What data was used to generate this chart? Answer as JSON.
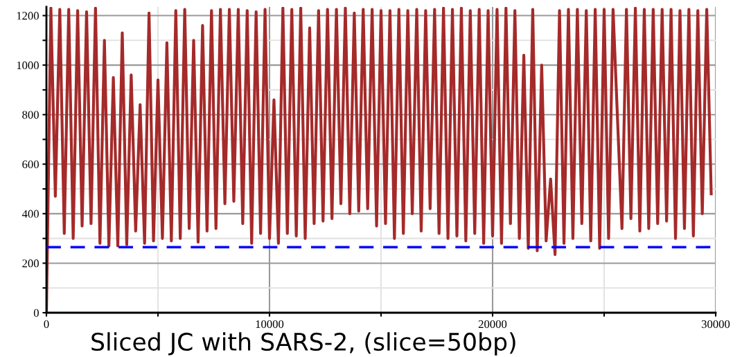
{
  "chart_data": {
    "type": "line",
    "title": "Sliced JC with SARS-2, (slice=50bp)",
    "x": [
      0,
      200,
      400,
      600,
      800,
      1000,
      1200,
      1400,
      1600,
      1800,
      2000,
      2200,
      2400,
      2600,
      2800,
      3000,
      3200,
      3400,
      3600,
      3800,
      4000,
      4200,
      4400,
      4600,
      4800,
      5000,
      5200,
      5400,
      5600,
      5800,
      6000,
      6200,
      6400,
      6600,
      6800,
      7000,
      7200,
      7400,
      7600,
      7800,
      8000,
      8200,
      8400,
      8600,
      8800,
      9000,
      9200,
      9400,
      9600,
      9800,
      10000,
      10200,
      10400,
      10600,
      10800,
      11000,
      11200,
      11400,
      11600,
      11800,
      12000,
      12200,
      12400,
      12600,
      12800,
      13000,
      13200,
      13400,
      13600,
      13800,
      14000,
      14200,
      14400,
      14600,
      14800,
      15000,
      15200,
      15400,
      15600,
      15800,
      16000,
      16200,
      16400,
      16600,
      16800,
      17000,
      17200,
      17400,
      17600,
      17800,
      18000,
      18200,
      18400,
      18600,
      18800,
      19000,
      19200,
      19400,
      19600,
      19800,
      20000,
      20200,
      20400,
      20600,
      20800,
      21000,
      21200,
      21400,
      21600,
      21800,
      22000,
      22200,
      22400,
      22600,
      22800,
      23000,
      23200,
      23400,
      23600,
      23800,
      24000,
      24200,
      24400,
      24600,
      24800,
      25000,
      25200,
      25400,
      25800,
      26000,
      26200,
      26400,
      26600,
      26800,
      27000,
      27200,
      27400,
      27600,
      27800,
      28000,
      28200,
      28400,
      28600,
      28800,
      29000,
      29200,
      29400,
      29600,
      29800
    ],
    "series": [
      {
        "color": "#a52a2a",
        "values": [
          0,
          1230,
          470,
          1225,
          320,
          1225,
          300,
          1220,
          350,
          1215,
          360,
          1230,
          280,
          1100,
          270,
          950,
          270,
          1130,
          275,
          960,
          330,
          840,
          280,
          1210,
          290,
          940,
          300,
          1090,
          290,
          1220,
          300,
          1225,
          340,
          1100,
          285,
          1160,
          330,
          1220,
          340,
          1225,
          440,
          1225,
          450,
          1225,
          360,
          1220,
          280,
          1215,
          320,
          1225,
          300,
          860,
          280,
          1230,
          320,
          1225,
          310,
          1230,
          300,
          1150,
          360,
          1220,
          370,
          1225,
          380,
          1225,
          440,
          1230,
          400,
          1210,
          410,
          1225,
          420,
          1225,
          350,
          1220,
          360,
          1220,
          300,
          1225,
          320,
          1220,
          400,
          1225,
          330,
          1220,
          420,
          1225,
          320,
          1230,
          300,
          1225,
          310,
          1230,
          290,
          1220,
          320,
          1225,
          280,
          1220,
          310,
          1225,
          280,
          1230,
          360,
          1220,
          300,
          1040,
          260,
          1225,
          250,
          1000,
          290,
          540,
          235,
          1220,
          280,
          1225,
          300,
          1225,
          360,
          1220,
          290,
          1225,
          260,
          1225,
          300,
          1225,
          340,
          1225,
          380,
          1230,
          330,
          1225,
          340,
          1225,
          360,
          1225,
          370,
          1225,
          300,
          1220,
          340,
          1225,
          310,
          1220,
          400,
          1225,
          480
        ]
      }
    ],
    "xlim": [
      0,
      30000
    ],
    "ylim": [
      0,
      1235
    ],
    "xticks": [
      0,
      {
        "value": 5000,
        "label": null
      },
      10000,
      {
        "value": 15000,
        "label": null
      },
      20000,
      {
        "value": 25000,
        "label": null
      },
      30000
    ],
    "yticks": [
      0,
      {
        "value": 100,
        "label": null
      },
      200,
      {
        "value": 300,
        "label": null
      },
      400,
      {
        "value": 500,
        "label": null
      },
      600,
      {
        "value": 700,
        "label": null
      },
      800,
      {
        "value": 900,
        "label": null
      },
      1000,
      {
        "value": 1100,
        "label": null
      },
      1200
    ],
    "grid": true,
    "line_style": "solid",
    "marker": "none",
    "ref_lines": [
      {
        "axis": "y",
        "value": 265,
        "color": "#0000ff",
        "line_style": "dashed"
      }
    ]
  }
}
